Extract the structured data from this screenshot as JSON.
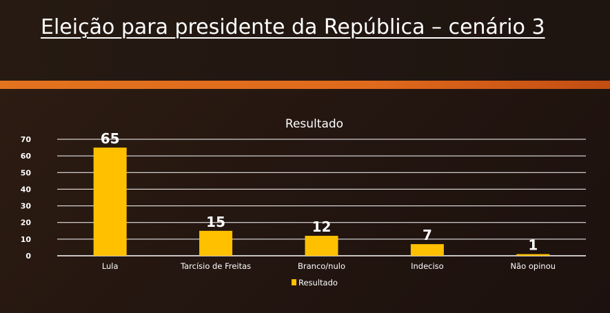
{
  "slide": {
    "title": "Eleição para presidente da República – cenário 3"
  },
  "colors": {
    "bar": "#ffc000",
    "accent_band": "#e2731f",
    "background": "#261810"
  },
  "chart_data": {
    "type": "bar",
    "title": "Resultado",
    "categories": [
      "Lula",
      "Tarcísio de Freitas",
      "Branco/nulo",
      "Indeciso",
      "Não opinou"
    ],
    "series": [
      {
        "name": "Resultado",
        "values": [
          65,
          15,
          12,
          7,
          1
        ]
      }
    ],
    "ylim": [
      0,
      70
    ],
    "yticks": [
      0,
      10,
      20,
      30,
      40,
      50,
      60,
      70
    ],
    "grid": true,
    "data_labels": true,
    "legend": "bottom"
  }
}
